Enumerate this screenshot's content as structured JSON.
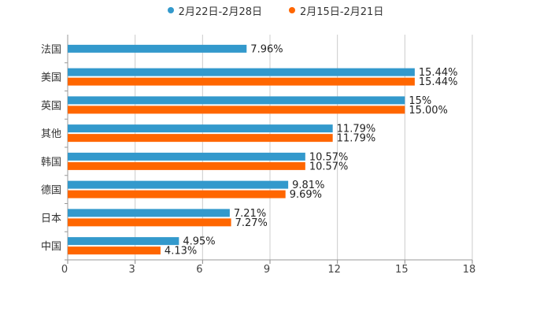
{
  "chart_data": {
    "type": "bar",
    "orientation": "horizontal",
    "categories": [
      "法国",
      "美国",
      "英国",
      "其他",
      "韩国",
      "德国",
      "日本",
      "中国"
    ],
    "series": [
      {
        "name": "2月22日-2月28日",
        "color": "#3399cc",
        "values": [
          7.96,
          15.44,
          15,
          11.79,
          10.57,
          9.81,
          7.21,
          4.95
        ],
        "labels": [
          "7.96%",
          "15.44%",
          "15%",
          "11.79%",
          "10.57%",
          "9.81%",
          "7.21%",
          "4.95%"
        ]
      },
      {
        "name": "2月15日-2月21日",
        "color": "#ff6600",
        "values": [
          null,
          15.44,
          15.0,
          11.79,
          10.57,
          9.69,
          7.27,
          4.13
        ],
        "labels": [
          "",
          "15.44%",
          "15.00%",
          "11.79%",
          "10.57%",
          "9.69%",
          "7.27%",
          "4.13%"
        ]
      }
    ],
    "xlim": [
      0,
      18
    ],
    "xticks": [
      "0",
      "3",
      "6",
      "9",
      "12",
      "15",
      "18"
    ],
    "grid": true,
    "legend_position": "top-center",
    "title": "",
    "xlabel": "",
    "ylabel": ""
  }
}
